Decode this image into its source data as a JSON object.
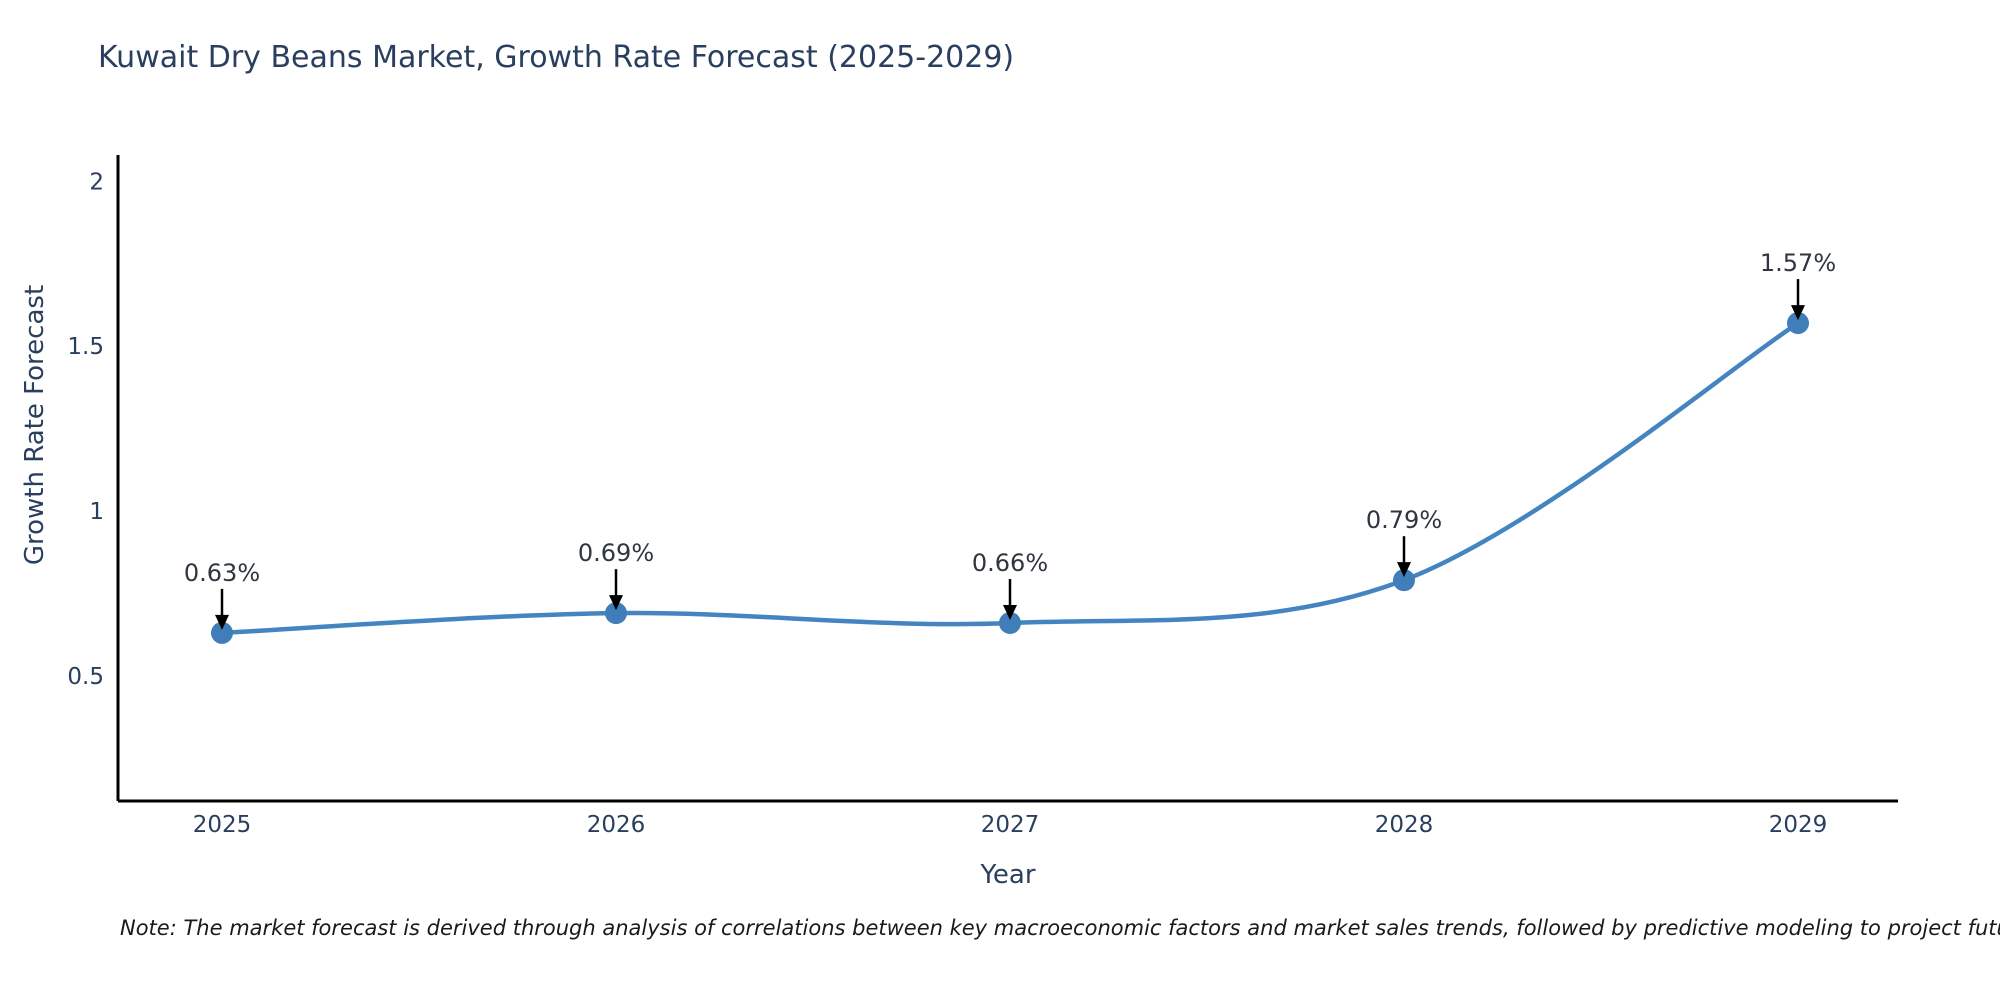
{
  "title": "Kuwait Dry Beans Market, Growth Rate Forecast (2025-2029)",
  "note": "Note: The market forecast is derived through analysis of correlations between key macroeconomic factors and market sales trends, followed by predictive modeling to project future sales",
  "chart_data": {
    "type": "line",
    "line_shape": "spline",
    "categories": [
      "2025",
      "2026",
      "2027",
      "2028",
      "2029"
    ],
    "series": [
      {
        "name": "Growth Rate Forecast",
        "values": [
          0.63,
          0.69,
          0.66,
          0.79,
          1.57
        ]
      }
    ],
    "point_labels": [
      "0.63%",
      "0.69%",
      "0.66%",
      "0.79%",
      "1.57%"
    ],
    "title": "Kuwait Dry Beans Market, Growth Rate Forecast (2025-2029)",
    "xlabel": "Year",
    "ylabel": "Growth Rate Forecast",
    "yticks": [
      0.5,
      1,
      1.5,
      2
    ],
    "ylim": [
      0.12,
      2.08
    ],
    "grid": false,
    "legend": "none",
    "colors": {
      "line": "#4484c0",
      "marker": "#3f7eb8",
      "arrow": "#000000",
      "axis": "#000000",
      "text": "#2a3f5f"
    }
  }
}
